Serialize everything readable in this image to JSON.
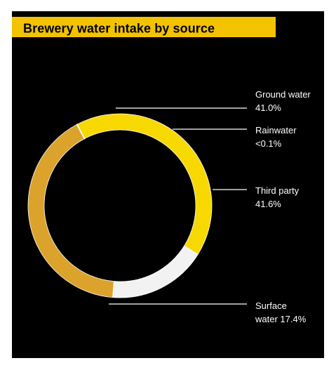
{
  "chart_data": {
    "type": "pie",
    "variant": "donut",
    "title": "Brewery water intake by source",
    "slices": [
      {
        "name_line1": "Ground water",
        "value_text": "41.0%",
        "value": 41.0,
        "color": "#dba32c"
      },
      {
        "name_line1": "Rainwater",
        "value_text": "<0.1%",
        "value": 0.1,
        "color": "#f3c300"
      },
      {
        "name_line1": "Third party",
        "value_text": "41.6%",
        "value": 41.6,
        "color": "#f7d800"
      },
      {
        "name_line1": "Surface",
        "value_line2": "water 17.4%",
        "value": 17.4,
        "color": "#f2f2f2"
      }
    ]
  },
  "colors": {
    "background": "#000000",
    "title_bar": "#f3c300",
    "title_text": "#000000",
    "label_text": "#ffffff",
    "leader_line": "#ffffff"
  }
}
